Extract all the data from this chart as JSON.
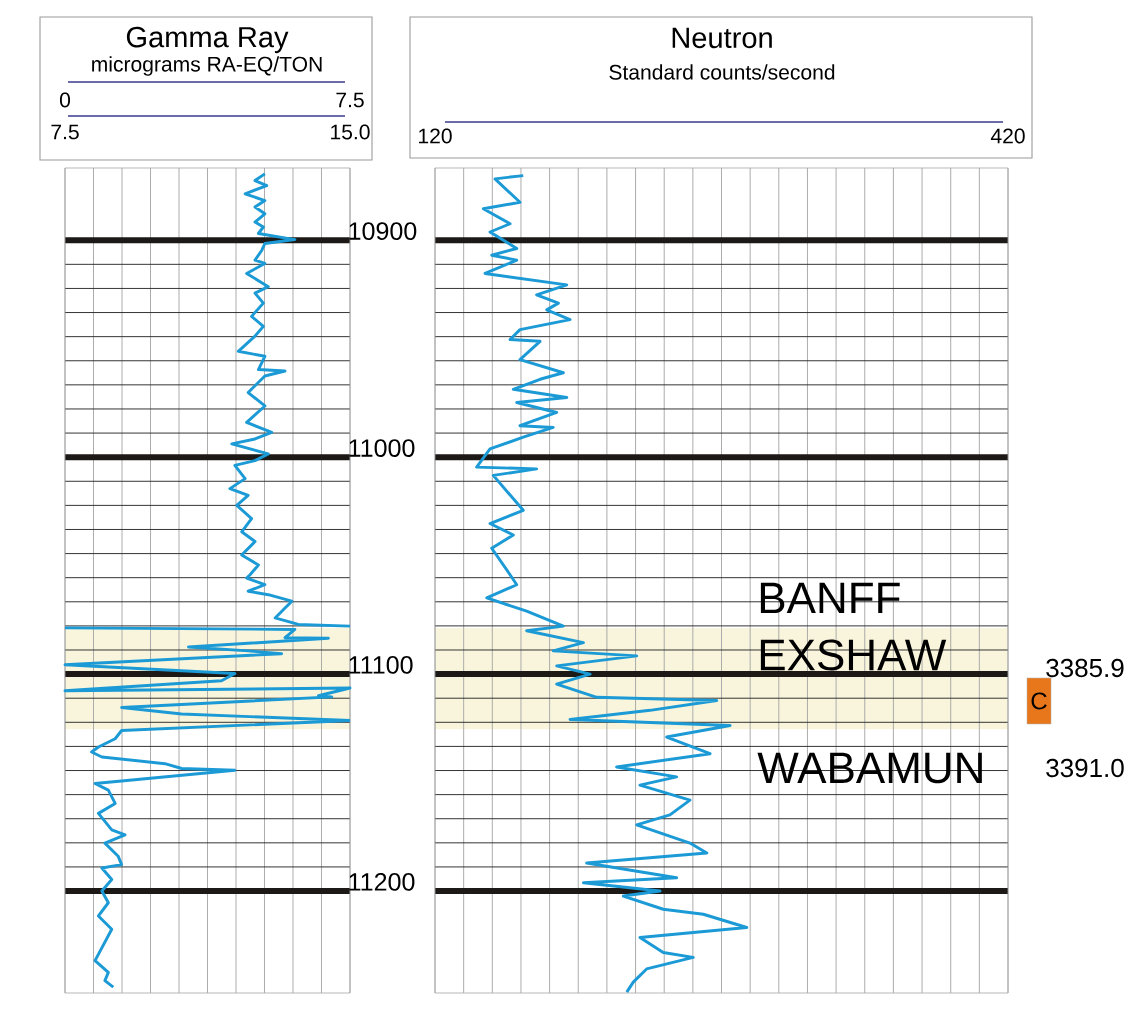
{
  "chart_data": [
    {
      "type": "line",
      "title": "Gamma Ray",
      "subtitle": "micrograms RA-EQ/TON",
      "orientation": "horizontal",
      "grid": true,
      "xlim": [
        0,
        7.5
      ],
      "xticks": [
        0,
        {
          "value": 0.75,
          "label": null
        },
        {
          "value": 1.5,
          "label": null
        },
        {
          "value": 2.25,
          "label": null
        },
        {
          "value": 3,
          "label": null
        },
        {
          "value": 3.75,
          "label": null
        },
        {
          "value": 4.5,
          "label": null
        },
        {
          "value": 5.25,
          "label": null
        },
        {
          "value": 6,
          "label": null
        },
        {
          "value": 6.75,
          "label": null
        },
        7.5
      ],
      "x2lim": [
        7.5,
        15
      ],
      "x2ticks": [
        7.5,
        {
          "value": 15,
          "label": "15.0"
        }
      ],
      "ylim": [
        11247,
        10866.7
      ],
      "yticks": [
        10900,
        11000,
        11100,
        11200
      ],
      "bands": [
        {
          "axis": "y",
          "from": 11078.7,
          "to": 11125.4,
          "color": "#f8f5dc"
        }
      ],
      "series": [
        {
          "color": "#1b9ad6",
          "x": [
            10869.4,
            10872.5,
            10874.8,
            10878.6,
            10881.7,
            10884.7,
            10887.8,
            10891.6,
            10893.9,
            10896.9,
            10899.7,
            10901.5,
            10904.6,
            10909.2,
            10910.7,
            10915.3,
            10921.4,
            10924.4,
            10929,
            10935.1,
            10939.7,
            10944.2,
            10951.2,
            10953.5,
            10959.6,
            10960.3,
            10962.6,
            10970.2,
            10976.4,
            10984,
            10988.6,
            10991.6,
            10993.9,
            10998.5,
            11001.6,
            11003.8,
            11009.9,
            11014.5,
            11017.6,
            11022.2,
            11028.3,
            11034.4,
            11038.9,
            11045.1,
            11049.7,
            11054.2,
            11055.7,
            11058.8,
            11061.8,
            11063.4,
            11066.4,
            11069.5,
            11074.1,
            11077.1,
            11077.9,
            11100,
            11121.4,
            11126,
            11129.8,
            11133.6,
            11135.9,
            11138.2,
            11141.3,
            11143.5,
            11144.3,
            11150.4,
            11153.5,
            11159.6,
            11164.2,
            11171.8,
            11174.1,
            11177.9,
            11184,
            11187.8,
            11189.4,
            11194.7,
            11200,
            11205.4,
            11211.5,
            11217.6,
            11232.1,
            11237.5,
            11241.3,
            11244.3
          ],
          "values": [
            5.26,
            5.0,
            5.31,
            4.74,
            5.26,
            5.0,
            5.26,
            5.0,
            5.22,
            5.09,
            6.05,
            5.26,
            5.18,
            5.0,
            5.26,
            4.78,
            5.35,
            5.0,
            5.22,
            4.91,
            5.22,
            5.0,
            4.56,
            5.26,
            5.09,
            5.79,
            5.26,
            4.82,
            5.26,
            4.78,
            5.44,
            5.0,
            4.39,
            5.35,
            5.0,
            4.47,
            4.74,
            4.34,
            4.82,
            4.52,
            4.91,
            4.65,
            5.0,
            4.65,
            5.09,
            4.87,
            4.78,
            5.26,
            4.82,
            5.35,
            5.97,
            5.79,
            5.53,
            6.14,
            7.5,
            null,
            7.5,
            1.49,
            1.32,
            0.88,
            0.7,
            0.97,
            2.63,
            3.07,
            4.47,
            0.79,
            1.14,
            1.32,
            0.88,
            1.23,
            1.58,
            1.05,
            1.4,
            1.49,
            0.97,
            1.23,
            0.97,
            1.14,
            0.88,
            1.23,
            0.79,
            1.14,
            1.05,
            1.27
          ]
        },
        {
          "color": "#1b9ad6",
          "axis": "x2",
          "x": [
            11078.7,
            11079.4,
            11083.2,
            11083.5,
            11087.5,
            11089.3,
            11090.6,
            11095.7,
            11099.7,
            11103.1,
            11107.7,
            11106.4,
            11110,
            11110.5,
            11115.4,
            11118.4,
            11121.4
          ],
          "values": [
            7.5,
            13.55,
            13.29,
            14.43,
            10.75,
            12.32,
            13.2,
            7.5,
            11.97,
            11.62,
            7.5,
            15.0,
            14.17,
            14.52,
            8.99,
            10.57,
            15.0
          ]
        }
      ]
    },
    {
      "type": "line",
      "title": "Neutron",
      "subtitle": "Standard counts/second",
      "orientation": "horizontal",
      "grid": true,
      "tick_labels": "x",
      "xlim": [
        120,
        420
      ],
      "xticks": [
        120,
        {
          "value": 135,
          "label": null
        },
        {
          "value": 150,
          "label": null
        },
        {
          "value": 165,
          "label": null
        },
        {
          "value": 180,
          "label": null
        },
        {
          "value": 195,
          "label": null
        },
        {
          "value": 210,
          "label": null
        },
        {
          "value": 225,
          "label": null
        },
        {
          "value": 240,
          "label": null
        },
        {
          "value": 255,
          "label": null
        },
        {
          "value": 270,
          "label": null
        },
        {
          "value": 285,
          "label": null
        },
        {
          "value": 300,
          "label": null
        },
        {
          "value": 315,
          "label": null
        },
        {
          "value": 330,
          "label": null
        },
        {
          "value": 345,
          "label": null
        },
        {
          "value": 360,
          "label": null
        },
        {
          "value": 375,
          "label": null
        },
        {
          "value": 390,
          "label": null
        },
        {
          "value": 405,
          "label": null
        },
        420
      ],
      "ylim": [
        11247,
        10866.7
      ],
      "yticks": [
        10900,
        11000,
        11100,
        11200
      ],
      "bands": [
        {
          "axis": "y",
          "from": 11078.7,
          "to": 11125.4,
          "color": "#f8f5dc"
        }
      ],
      "annotations": [
        "BANFF",
        "EXSHAW",
        "WABAMUN",
        "3385.9",
        "C",
        "3391.0"
      ],
      "series": [
        {
          "color": "#1b9ad6",
          "x": [
            10870.2,
            10871.7,
            10882.5,
            10885.5,
            10892.4,
            10896.2,
            10903.8,
            10906.9,
            10909.2,
            10915.3,
            10920.6,
            10925.2,
            10929,
            10932.1,
            10936.6,
            10941.2,
            10945.8,
            10946.6,
            10955,
            10961.1,
            10964.1,
            10968.7,
            10972.5,
            10974.8,
            10979.4,
            10985.5,
            10986.3,
            10990.8,
            10996.2,
            11004.6,
            11005.4,
            11008.4,
            11024.5,
            11030.6,
            11035.9,
            11042,
            11054.2,
            11058.8,
            11064.9,
            11071,
            11077.9,
            11080,
            11085.5,
            11089.3,
            11091.6,
            11096.2,
            11100,
            11104.6,
            11110.7,
            11112.2,
            11116.7,
            11120.9,
            11123.7,
            11129,
            11136.7,
            11142.8,
            11147.4,
            11151.2,
            11158.1,
            11164.9,
            11169.5,
            11177.9,
            11182.5,
            11187.1,
            11193.9,
            11196.2,
            11200,
            11202.3,
            11208.4,
            11210.7,
            11216.8,
            11221.4,
            11228.3,
            11230.6,
            11235.9,
            11242,
            11246.6
          ],
          "values": [
            166.2,
            151.4,
            164.5,
            145.3,
            159.3,
            148.8,
            162.8,
            149.7,
            162.8,
            146.2,
            189,
            173.2,
            184.6,
            178.5,
            190.7,
            164.5,
            159.3,
            175,
            164.5,
            187.2,
            175,
            161,
            189,
            162.8,
            183.7,
            164.5,
            181.9,
            166.2,
            148.8,
            141.8,
            173.2,
            150.5,
            166.2,
            148.8,
            161,
            149.7,
            159.3,
            162.8,
            147.1,
            168,
            187.2,
            168,
            197.7,
            181.9,
            225.6,
            183.7,
            201.2,
            183.7,
            204.7,
            267.5,
            232.6,
            190.7,
            274.5,
            241.3,
            264,
            215.1,
            246.5,
            227.3,
            253.5,
            243,
            225.6,
            253.5,
            262.3,
            199.4,
            246.5,
            197.7,
            237.8,
            218.6,
            239.5,
            260.5,
            283.2,
            227.3,
            239.5,
            255.2,
            230.8,
            223.8,
            220.4
          ]
        }
      ]
    }
  ]
}
